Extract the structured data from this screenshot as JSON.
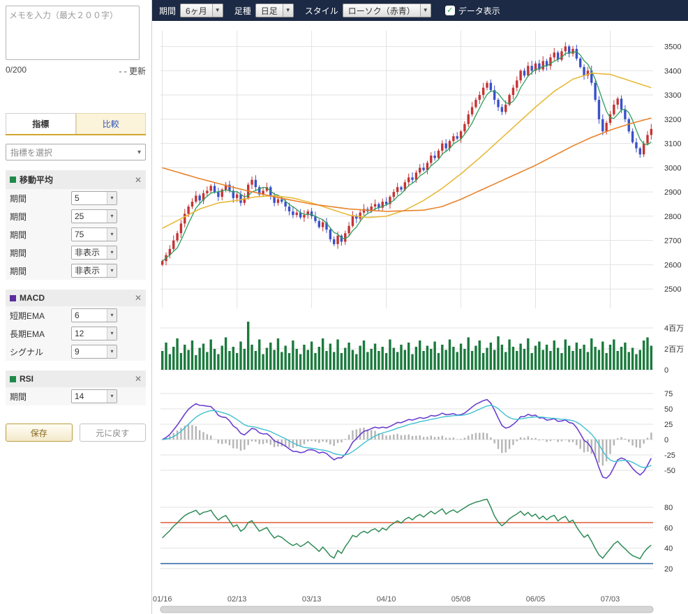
{
  "colors": {
    "toolbar_bg": "#1c2a45",
    "accent_gold": "#cfa72e",
    "tab_inactive_bg": "#fbf3da",
    "tab_text": "#3355bb",
    "save_border": "#bb9b3a",
    "save_text": "#8a6a1f",
    "check_green": "#27a844",
    "grid": "#e2e2e2",
    "candle_up": "#c43434",
    "candle_down": "#3a51c9",
    "volume": "#1b7a3d",
    "ma5": "#2e9e5b",
    "ma25": "#e8b93a",
    "ma75": "#e8832a",
    "macd_line": "#6a3fd0",
    "macd_signal": "#3fc0d0",
    "macd_hist": "#b5b5b5",
    "rsi_line": "#2e8b57",
    "rsi_overbought": "#e05c35",
    "rsi_oversold": "#3a6ea8"
  },
  "sidebar": {
    "memo": {
      "placeholder": "メモを入力（最大２００字）",
      "counter": "0/200",
      "update_label": "- - 更新"
    },
    "tabs": [
      {
        "label": "指標",
        "active": true
      },
      {
        "label": "比較",
        "active": false
      }
    ],
    "indicator_select_placeholder": "指標を選択",
    "sections": [
      {
        "name": "移動平均",
        "swatch_color": "#1e8a4a",
        "rows": [
          {
            "label": "期間",
            "value": "5"
          },
          {
            "label": "期間",
            "value": "25"
          },
          {
            "label": "期間",
            "value": "75"
          },
          {
            "label": "期間",
            "value": "非表示"
          },
          {
            "label": "期間",
            "value": "非表示"
          }
        ]
      },
      {
        "name": "MACD",
        "swatch_color": "#5b2d9e",
        "rows": [
          {
            "label": "短期EMA",
            "value": "6"
          },
          {
            "label": "長期EMA",
            "value": "12"
          },
          {
            "label": "シグナル",
            "value": "9"
          }
        ]
      },
      {
        "name": "RSI",
        "swatch_color": "#1e8a4a",
        "rows": [
          {
            "label": "期間",
            "value": "14"
          }
        ]
      }
    ],
    "buttons": {
      "save": "保存",
      "reset": "元に戻す"
    }
  },
  "toolbar": {
    "period_label": "期間",
    "period_value": "6ヶ月",
    "bar_type_label": "足種",
    "bar_type_value": "日足",
    "style_label": "スタイル",
    "style_value": "ローソク（赤青）",
    "data_display_label": "データ表示",
    "data_display_checked": true
  },
  "chart_data": {
    "type": "candlestick",
    "x_labels": [
      "01/16",
      "02/13",
      "03/13",
      "04/10",
      "05/08",
      "06/05",
      "07/03"
    ],
    "x_label_positions": [
      0,
      20,
      40,
      60,
      80,
      100,
      120
    ],
    "price_axis_ticks": [
      3500,
      3400,
      3300,
      3200,
      3100,
      3000,
      2900,
      2800,
      2700,
      2600,
      2500
    ],
    "closes": [
      2615,
      2640,
      2665,
      2700,
      2730,
      2770,
      2810,
      2840,
      2860,
      2885,
      2865,
      2895,
      2905,
      2925,
      2900,
      2880,
      2910,
      2930,
      2905,
      2875,
      2890,
      2855,
      2875,
      2930,
      2950,
      2920,
      2890,
      2905,
      2920,
      2885,
      2855,
      2870,
      2860,
      2840,
      2820,
      2805,
      2815,
      2795,
      2805,
      2820,
      2800,
      2780,
      2755,
      2775,
      2745,
      2705,
      2685,
      2720,
      2695,
      2730,
      2760,
      2800,
      2790,
      2815,
      2830,
      2820,
      2840,
      2850,
      2835,
      2860,
      2850,
      2880,
      2900,
      2920,
      2910,
      2940,
      2960,
      2950,
      2980,
      3000,
      2990,
      3020,
      3050,
      3040,
      3070,
      3100,
      3080,
      3110,
      3130,
      3120,
      3150,
      3180,
      3220,
      3250,
      3280,
      3300,
      3330,
      3350,
      3320,
      3280,
      3250,
      3230,
      3260,
      3300,
      3330,
      3360,
      3400,
      3380,
      3420,
      3400,
      3430,
      3405,
      3440,
      3420,
      3455,
      3475,
      3445,
      3480,
      3500,
      3470,
      3490,
      3450,
      3415,
      3380,
      3400,
      3350,
      3280,
      3200,
      3150,
      3185,
      3220,
      3260,
      3285,
      3240,
      3200,
      3150,
      3105,
      3080,
      3055,
      3100,
      3135,
      3160
    ],
    "volumes": [
      1.8,
      2.6,
      1.5,
      2.2,
      3.0,
      1.6,
      2.4,
      1.9,
      2.8,
      1.4,
      2.1,
      2.5,
      1.7,
      2.9,
      2.0,
      1.5,
      2.3,
      3.1,
      1.8,
      2.2,
      1.6,
      2.7,
      2.0,
      4.6,
      2.4,
      1.8,
      2.9,
      1.5,
      2.1,
      2.6,
      1.9,
      3.0,
      1.7,
      2.3,
      1.6,
      2.8,
      2.0,
      1.5,
      2.4,
      1.9,
      2.7,
      1.6,
      2.2,
      3.0,
      1.8,
      2.5,
      1.7,
      2.9,
      1.6,
      2.1,
      2.6,
      1.9,
      1.5,
      2.3,
      2.8,
      1.7,
      2.0,
      2.5,
      1.8,
      2.2,
      1.6,
      2.9,
      2.1,
      1.7,
      2.4,
      1.9,
      2.6,
      1.5,
      2.2,
      2.8,
      1.8,
      2.3,
      2.0,
      2.7,
      1.6,
      2.4,
      1.9,
      2.9,
      2.2,
      1.7,
      2.5,
      2.0,
      3.1,
      1.8,
      2.3,
      2.8,
      1.6,
      2.1,
      2.6,
      1.9,
      3.2,
      2.4,
      1.7,
      2.9,
      2.2,
      1.8,
      2.5,
      2.0,
      3.0,
      1.6,
      2.3,
      2.7,
      1.9,
      2.4,
      1.8,
      2.8,
      2.1,
      1.6,
      2.9,
      2.3,
      1.8,
      2.6,
      2.0,
      2.4,
      1.7,
      3.0,
      2.2,
      1.9,
      2.7,
      1.6,
      2.4,
      2.9,
      1.8,
      2.2,
      2.6,
      1.7,
      2.1,
      1.5,
      1.9,
      2.8,
      3.1,
      2.3
    ],
    "volume_ticks": [
      {
        "v": 4,
        "label": "4百万"
      },
      {
        "v": 2,
        "label": "2百万"
      },
      {
        "v": 0,
        "label": "0"
      }
    ],
    "ma": {
      "ma5_period": 5,
      "ma25_period": 25,
      "ma75_period": 75,
      "ma25_points": [
        [
          0,
          2750
        ],
        [
          5,
          2790
        ],
        [
          10,
          2830
        ],
        [
          15,
          2855
        ],
        [
          20,
          2865
        ],
        [
          25,
          2880
        ],
        [
          30,
          2885
        ],
        [
          35,
          2875
        ],
        [
          40,
          2855
        ],
        [
          45,
          2830
        ],
        [
          50,
          2805
        ],
        [
          55,
          2795
        ],
        [
          60,
          2800
        ],
        [
          65,
          2825
        ],
        [
          70,
          2865
        ],
        [
          75,
          2915
        ],
        [
          80,
          2975
        ],
        [
          85,
          3040
        ],
        [
          90,
          3110
        ],
        [
          95,
          3180
        ],
        [
          100,
          3250
        ],
        [
          105,
          3315
        ],
        [
          110,
          3365
        ],
        [
          115,
          3390
        ],
        [
          120,
          3385
        ],
        [
          125,
          3360
        ],
        [
          131,
          3330
        ]
      ],
      "ma75_points": [
        [
          0,
          3000
        ],
        [
          10,
          2955
        ],
        [
          20,
          2915
        ],
        [
          30,
          2880
        ],
        [
          40,
          2850
        ],
        [
          50,
          2830
        ],
        [
          60,
          2820
        ],
        [
          70,
          2825
        ],
        [
          75,
          2840
        ],
        [
          80,
          2870
        ],
        [
          85,
          2905
        ],
        [
          90,
          2940
        ],
        [
          95,
          2975
        ],
        [
          100,
          3010
        ],
        [
          105,
          3050
        ],
        [
          110,
          3090
        ],
        [
          115,
          3125
        ],
        [
          120,
          3155
        ],
        [
          125,
          3180
        ],
        [
          131,
          3205
        ]
      ]
    },
    "macd": {
      "fast": 6,
      "slow": 12,
      "signal": 9,
      "ticks": [
        75,
        50,
        25,
        0,
        -25,
        -50
      ]
    },
    "rsi": {
      "period": 14,
      "overbought": 65,
      "oversold": 25,
      "ticks": [
        80,
        60,
        40,
        20
      ]
    }
  }
}
